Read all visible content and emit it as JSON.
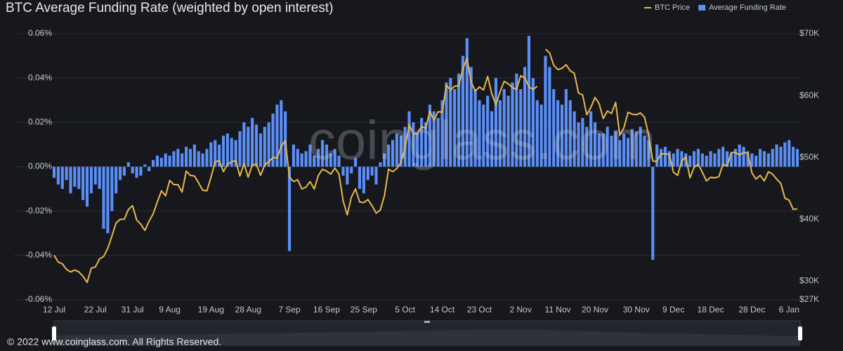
{
  "chart_data": {
    "type": "combo",
    "title": "BTC Average Funding Rate  (weighted by open interest)",
    "watermark": "coinglass.com",
    "footer": "© 2022 www.coinglass.com. All Rights Reserved.",
    "legend": "top-right",
    "categories": [
      "12 Jul",
      null,
      null,
      null,
      null,
      null,
      null,
      null,
      null,
      null,
      "22 Jul",
      null,
      null,
      null,
      null,
      null,
      null,
      null,
      null,
      "31 Jul",
      null,
      null,
      null,
      null,
      null,
      null,
      null,
      null,
      "9 Aug",
      null,
      null,
      null,
      null,
      null,
      null,
      null,
      null,
      null,
      "19 Aug",
      null,
      null,
      null,
      null,
      null,
      null,
      null,
      null,
      "28 Aug",
      null,
      null,
      null,
      null,
      null,
      null,
      null,
      null,
      null,
      "7 Sep",
      null,
      null,
      null,
      null,
      null,
      null,
      null,
      null,
      "16 Sep",
      null,
      null,
      null,
      null,
      null,
      null,
      null,
      null,
      "25 Sep",
      null,
      null,
      null,
      null,
      null,
      null,
      null,
      null,
      null,
      "5 Oct",
      null,
      null,
      null,
      null,
      null,
      null,
      null,
      null,
      "14 Oct",
      null,
      null,
      null,
      null,
      null,
      null,
      null,
      null,
      "23 Oct",
      null,
      null,
      null,
      null,
      null,
      null,
      null,
      null,
      null,
      "2 Nov",
      null,
      null,
      null,
      null,
      null,
      null,
      null,
      null,
      "11 Nov",
      null,
      null,
      null,
      null,
      null,
      null,
      null,
      null,
      "20 Nov",
      null,
      null,
      null,
      null,
      null,
      null,
      null,
      null,
      null,
      "30 Nov",
      null,
      null,
      null,
      null,
      null,
      null,
      null,
      null,
      "9 Dec",
      null,
      null,
      null,
      null,
      null,
      null,
      null,
      null,
      "18 Dec",
      null,
      null,
      null,
      null,
      null,
      null,
      null,
      null,
      null,
      "28 Dec",
      null,
      null,
      null,
      null,
      null,
      null,
      null,
      null,
      "6 Jan",
      null,
      null
    ],
    "series": [
      {
        "name": "BTC Price",
        "type": "line",
        "axis": "y2",
        "color": "#e8b84a",
        "values": [
          34200,
          33100,
          32800,
          31900,
          31500,
          31800,
          31500,
          30800,
          29800,
          32100,
          32300,
          33600,
          34000,
          35300,
          37300,
          39400,
          40000,
          40000,
          41600,
          42200,
          39900,
          39200,
          38200,
          39700,
          40900,
          42800,
          44600,
          43800,
          46300,
          45600,
          45600,
          44400,
          47800,
          47100,
          47000,
          45900,
          44700,
          44600,
          46800,
          49300,
          49500,
          47700,
          48900,
          49300,
          49500,
          47000,
          49000,
          46800,
          48800,
          48900,
          47100,
          48800,
          49300,
          50000,
          49900,
          51800,
          52700,
          46800,
          46100,
          46400,
          44900,
          45200,
          46100,
          44900,
          47100,
          48100,
          47800,
          47300,
          48300,
          47300,
          43000,
          40700,
          43600,
          44900,
          42800,
          42700,
          43200,
          42200,
          41000,
          41500,
          43800,
          48100,
          47700,
          48200,
          49200,
          51500,
          55300,
          53800,
          53900,
          55000,
          54700,
          57500,
          56000,
          57400,
          57300,
          61700,
          60900,
          61500,
          61600,
          64300,
          66000,
          62200,
          60700,
          61400,
          60900,
          63100,
          60300,
          58500,
          60600,
          62300,
          61900,
          61300,
          61000,
          63200,
          62900,
          61400,
          61000,
          61500,
          null,
          67500,
          66900,
          64900,
          64200,
          64400,
          65000,
          64000,
          63600,
          60400,
          60100,
          56900,
          58100,
          59700,
          58700,
          56300,
          57500,
          57100,
          58900,
          53600,
          54800,
          57300,
          57000,
          56900,
          57200,
          56500,
          53600,
          49400,
          49400,
          50600,
          50600,
          50500,
          47600,
          47100,
          49400,
          50100,
          46700,
          48400,
          48900,
          47600,
          46200,
          46800,
          46700,
          46900,
          48900,
          48600,
          50800,
          50800,
          50400,
          50800,
          50700,
          47500,
          46500,
          47100,
          46200,
          47700,
          47300,
          46500,
          45800,
          43400,
          43100,
          41600,
          41700
        ]
      },
      {
        "name": "Average Funding Rate",
        "type": "bar",
        "axis": "y",
        "color": "#5b8ff9",
        "values": [
          -0.005,
          -0.008,
          -0.01,
          -0.006,
          -0.012,
          -0.009,
          -0.01,
          -0.015,
          -0.018,
          -0.012,
          -0.008,
          -0.01,
          -0.028,
          -0.03,
          -0.02,
          -0.012,
          -0.006,
          -0.004,
          0.002,
          -0.003,
          -0.005,
          -0.004,
          0.001,
          -0.002,
          0.003,
          0.005,
          0.004,
          0.006,
          0.005,
          0.007,
          0.008,
          0.006,
          0.009,
          0.008,
          0.01,
          0.007,
          0.006,
          0.008,
          0.011,
          0.012,
          0.01,
          0.014,
          0.015,
          0.013,
          0.012,
          0.016,
          0.02,
          0.018,
          0.022,
          0.019,
          0.015,
          0.018,
          0.02,
          0.024,
          0.028,
          0.03,
          0.025,
          -0.038,
          0.01,
          0.008,
          0.006,
          0.007,
          0.01,
          0.005,
          0.008,
          0.012,
          0.01,
          0.006,
          0.008,
          0.005,
          -0.004,
          -0.008,
          -0.003,
          0.004,
          -0.01,
          -0.012,
          -0.006,
          -0.004,
          -0.008,
          0.002,
          0.006,
          0.01,
          0.012,
          0.015,
          0.014,
          0.018,
          0.025,
          0.02,
          0.015,
          0.022,
          0.02,
          0.028,
          0.025,
          0.022,
          0.03,
          0.038,
          0.04,
          0.035,
          0.042,
          0.05,
          0.058,
          0.045,
          0.035,
          0.03,
          0.028,
          0.032,
          0.025,
          0.04,
          0.03,
          0.035,
          0.032,
          0.038,
          0.042,
          0.035,
          0.045,
          0.059,
          0.04,
          0.03,
          0.028,
          0.05,
          0.045,
          0.035,
          0.03,
          0.028,
          0.035,
          0.03,
          0.025,
          0.02,
          0.022,
          0.018,
          0.025,
          0.02,
          0.015,
          0.015,
          0.018,
          0.014,
          0.016,
          0.012,
          0.015,
          0.013,
          0.017,
          0.016,
          0.018,
          0.014,
          0.012,
          -0.042,
          0.01,
          0.008,
          0.009,
          0.007,
          0.006,
          0.008,
          0.007,
          0.006,
          0.005,
          0.007,
          0.008,
          0.006,
          0.005,
          0.007,
          0.006,
          0.008,
          0.009,
          0.007,
          0.006,
          0.008,
          0.01,
          0.009,
          0.007,
          0.006,
          0.005,
          0.008,
          0.007,
          0.006,
          0.008,
          0.01,
          0.009,
          0.011,
          0.012,
          0.009,
          0.008
        ]
      }
    ],
    "ylim": [
      -0.06,
      0.06
    ],
    "yticks": [
      {
        "value": 0.06,
        "label": "0.06%"
      },
      {
        "value": 0.04,
        "label": "0.04%"
      },
      {
        "value": 0.02,
        "label": "0.02%"
      },
      {
        "value": 0,
        "label": "0.00%"
      },
      {
        "value": -0.02,
        "label": "-0.02%"
      },
      {
        "value": -0.04,
        "label": "-0.04%"
      },
      {
        "value": -0.06,
        "label": "-0.06%"
      }
    ],
    "y2lim": [
      27000,
      70000
    ],
    "y2ticks": [
      {
        "value": 27000,
        "label": "$27K"
      },
      {
        "value": 30000,
        "label": "$30K"
      },
      {
        "value": 40000,
        "label": "$40K"
      },
      {
        "value": 50000,
        "label": "$50K"
      },
      {
        "value": 60000,
        "label": "$60K"
      },
      {
        "value": 70000,
        "label": "$70K"
      }
    ],
    "grid": true
  }
}
